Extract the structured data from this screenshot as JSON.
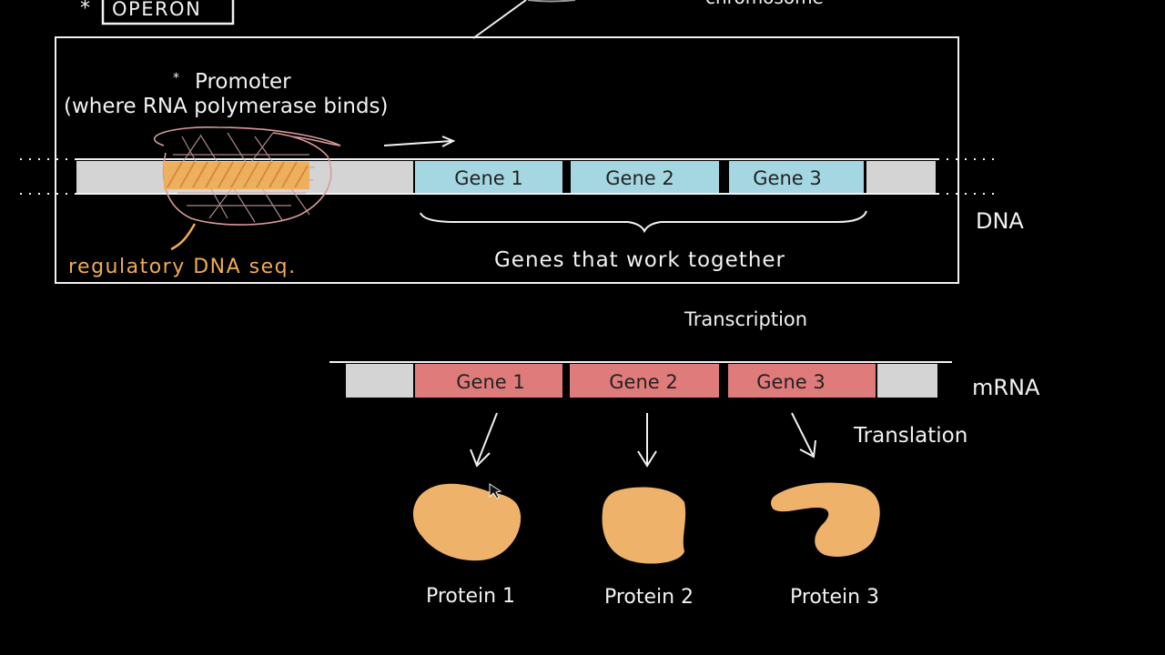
{
  "operon_label": "OPERON",
  "operon_star": "*",
  "chromosome_fragment": "chromosome",
  "promoter": {
    "bullet": "*",
    "title": "Promoter",
    "note": "(where RNA polymerase binds)"
  },
  "regulatory_label": "regulatory DNA seq.",
  "dna": {
    "label": "DNA",
    "genes": [
      "Gene 1",
      "Gene 2",
      "Gene 3"
    ],
    "brace_label": "Genes that work together"
  },
  "transcription_label": "Transcription",
  "mrna": {
    "label": "mRNA",
    "genes": [
      "Gene 1",
      "Gene 2",
      "Gene 3"
    ]
  },
  "translation_label": "Translation",
  "proteins": [
    "Protein 1",
    "Protein 2",
    "Protein 3"
  ],
  "colors": {
    "background": "#000000",
    "chalk": "#f2f2f2",
    "dna_gene": "#a5d7e2",
    "mrna_gene": "#e07b7b",
    "untranslated": "#d4d4d4",
    "protein": "#efb26a",
    "regulatory": "#efac55",
    "promoter_scribble": "#d99a9a"
  }
}
